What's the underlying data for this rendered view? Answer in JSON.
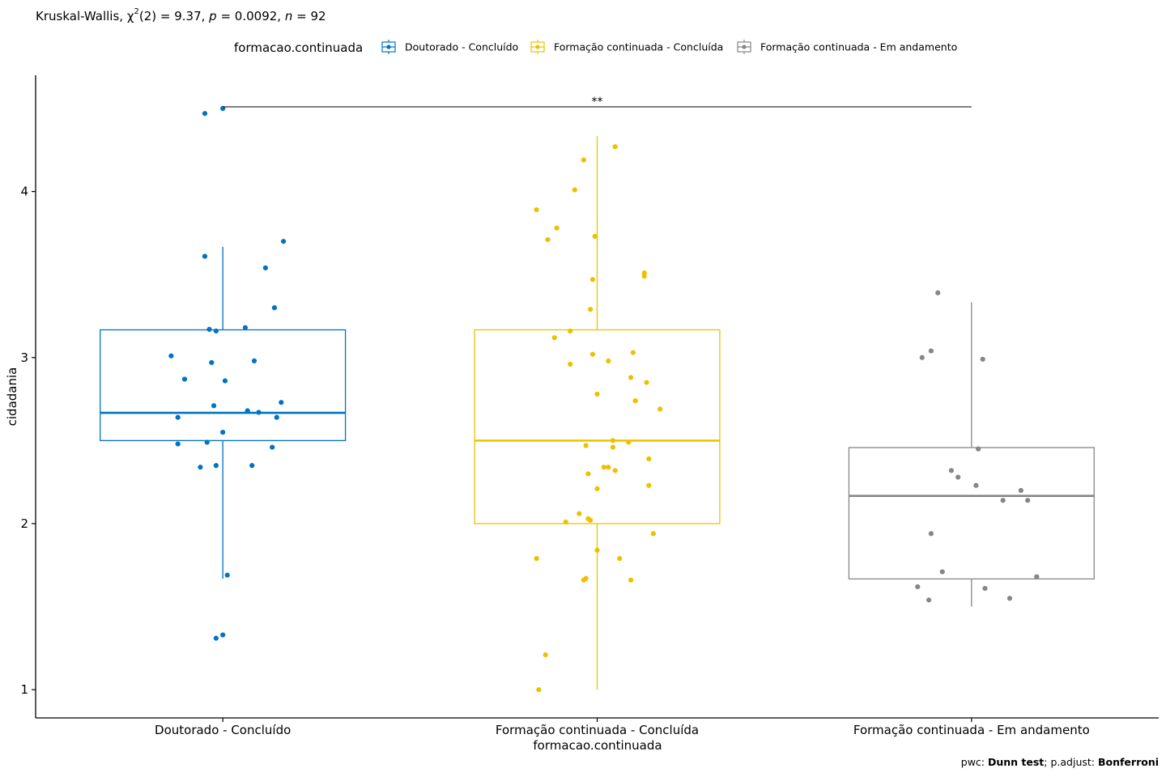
{
  "chart_data": {
    "type": "boxplot",
    "test_summary": {
      "prefix": "Kruskal-Wallis, χ",
      "superscript": "2",
      "df_part": "(2) = 9.37, ",
      "p_symbol": "p",
      "p_part": " = 0.0092, ",
      "n_symbol": "n",
      "n_part": " = 92"
    },
    "legend": {
      "title": "formacao.continuada",
      "position": "top"
    },
    "xlabel": "formacao.continuada",
    "ylabel": "cidadania",
    "ylim": [
      0.83,
      4.7
    ],
    "yticks": [
      1,
      2,
      3,
      4
    ],
    "grid": false,
    "significance": {
      "from": "Doutorado - Concluído",
      "to": "Formação continuada - Em andamento",
      "y": 4.51,
      "label": "**"
    },
    "caption": {
      "pwc_prefix": "pwc: ",
      "pwc_method": "Dunn test",
      "adjust_prefix": "; p.adjust: ",
      "adjust_method": "Bonferroni"
    },
    "groups": [
      {
        "name": "Doutorado - Concluído",
        "color": "#0073C2",
        "box": {
          "q1": 2.5,
          "median": 2.667,
          "q3": 3.167,
          "whisker_low": 1.667,
          "whisker_high": 3.667
        },
        "points": [
          [
            -0.08,
            4.47
          ],
          [
            0.0,
            4.5
          ],
          [
            -0.08,
            3.61
          ],
          [
            0.19,
            3.54
          ],
          [
            0.27,
            3.7
          ],
          [
            0.23,
            3.3
          ],
          [
            -0.06,
            3.17
          ],
          [
            -0.03,
            3.16
          ],
          [
            0.1,
            3.18
          ],
          [
            -0.23,
            3.01
          ],
          [
            -0.05,
            2.97
          ],
          [
            0.14,
            2.98
          ],
          [
            -0.17,
            2.87
          ],
          [
            0.01,
            2.86
          ],
          [
            0.26,
            2.73
          ],
          [
            -0.04,
            2.71
          ],
          [
            0.11,
            2.68
          ],
          [
            0.16,
            2.67
          ],
          [
            -0.2,
            2.64
          ],
          [
            0.24,
            2.64
          ],
          [
            0.0,
            2.55
          ],
          [
            -0.2,
            2.48
          ],
          [
            -0.07,
            2.49
          ],
          [
            0.22,
            2.46
          ],
          [
            -0.1,
            2.34
          ],
          [
            -0.03,
            2.35
          ],
          [
            0.13,
            2.35
          ],
          [
            0.02,
            1.69
          ],
          [
            -0.03,
            1.31
          ],
          [
            0.0,
            1.33
          ]
        ]
      },
      {
        "name": "Formação continuada - Concluída",
        "color": "#EFC000",
        "box": {
          "q1": 2.0,
          "median": 2.5,
          "q3": 3.167,
          "whisker_low": 1.0,
          "whisker_high": 4.333
        },
        "points": [
          [
            0.08,
            4.27
          ],
          [
            -0.06,
            4.19
          ],
          [
            -0.1,
            4.01
          ],
          [
            -0.27,
            3.89
          ],
          [
            -0.18,
            3.78
          ],
          [
            -0.22,
            3.71
          ],
          [
            -0.01,
            3.73
          ],
          [
            0.21,
            3.51
          ],
          [
            0.21,
            3.49
          ],
          [
            -0.02,
            3.47
          ],
          [
            -0.03,
            3.29
          ],
          [
            -0.19,
            3.12
          ],
          [
            -0.12,
            3.16
          ],
          [
            -0.02,
            3.02
          ],
          [
            0.05,
            2.98
          ],
          [
            0.16,
            3.03
          ],
          [
            -0.12,
            2.96
          ],
          [
            0.15,
            2.88
          ],
          [
            0.22,
            2.85
          ],
          [
            0.0,
            2.78
          ],
          [
            0.17,
            2.74
          ],
          [
            0.28,
            2.69
          ],
          [
            0.07,
            2.5
          ],
          [
            0.14,
            2.49
          ],
          [
            -0.05,
            2.47
          ],
          [
            0.07,
            2.46
          ],
          [
            0.23,
            2.39
          ],
          [
            0.03,
            2.34
          ],
          [
            0.05,
            2.34
          ],
          [
            0.08,
            2.32
          ],
          [
            -0.04,
            2.3
          ],
          [
            0.0,
            2.21
          ],
          [
            0.23,
            2.23
          ],
          [
            -0.08,
            2.06
          ],
          [
            -0.04,
            2.03
          ],
          [
            -0.03,
            2.02
          ],
          [
            -0.14,
            2.01
          ],
          [
            0.25,
            1.94
          ],
          [
            0.0,
            1.84
          ],
          [
            -0.27,
            1.79
          ],
          [
            0.1,
            1.79
          ],
          [
            -0.06,
            1.66
          ],
          [
            -0.05,
            1.67
          ],
          [
            0.15,
            1.66
          ],
          [
            -0.23,
            1.21
          ],
          [
            -0.26,
            1.0
          ]
        ]
      },
      {
        "name": "Formação continuada - Em andamento",
        "color": "#868686",
        "box": {
          "q1": 1.667,
          "median": 2.167,
          "q3": 2.458,
          "whisker_low": 1.5,
          "whisker_high": 3.333
        },
        "points": [
          [
            -0.15,
            3.39
          ],
          [
            -0.18,
            3.04
          ],
          [
            -0.22,
            3.0
          ],
          [
            0.05,
            2.99
          ],
          [
            0.03,
            2.45
          ],
          [
            -0.09,
            2.32
          ],
          [
            -0.06,
            2.28
          ],
          [
            0.02,
            2.23
          ],
          [
            0.22,
            2.2
          ],
          [
            0.14,
            2.14
          ],
          [
            0.25,
            2.14
          ],
          [
            -0.18,
            1.94
          ],
          [
            -0.13,
            1.71
          ],
          [
            0.29,
            1.68
          ],
          [
            -0.24,
            1.62
          ],
          [
            0.06,
            1.61
          ],
          [
            -0.19,
            1.54
          ],
          [
            0.17,
            1.55
          ]
        ]
      }
    ]
  }
}
